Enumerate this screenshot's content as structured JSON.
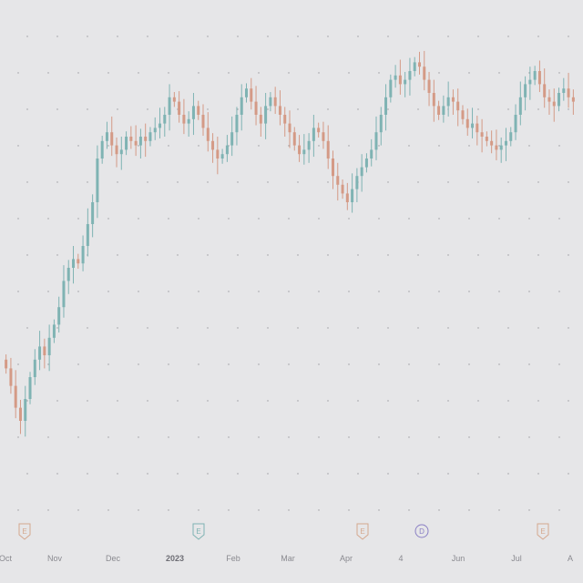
{
  "colors": {
    "background": "#e6e6e8",
    "up": "#7fb3b3",
    "down": "#d49a86",
    "earnings_marker": "#d4a88e",
    "earnings_marker_alt": "#7fb3b3",
    "dividend_marker": "#8a7fc4",
    "axis_text": "#8a8a90"
  },
  "chart_data": {
    "type": "candlestick",
    "title": "",
    "xlabel": "",
    "ylabel": "",
    "ylim": [
      0,
      100
    ],
    "y_axis_visible": false,
    "grid": "dotted",
    "x_ticks": [
      "Oct",
      "Nov",
      "Dec",
      "2023",
      "Feb",
      "Mar",
      "Apr",
      "4",
      "Jun",
      "Jul",
      "A"
    ],
    "x_tick_emphasis": [
      false,
      false,
      false,
      true,
      false,
      false,
      false,
      false,
      false,
      false,
      false
    ],
    "events": [
      {
        "label": "E",
        "type": "earnings",
        "after_tick": "Oct"
      },
      {
        "label": "E",
        "type": "earnings",
        "after_tick": "2023"
      },
      {
        "label": "E",
        "type": "earnings",
        "after_tick": "Apr"
      },
      {
        "label": "D",
        "type": "dividend",
        "after_tick": "4"
      },
      {
        "label": "E",
        "type": "earnings",
        "after_tick": "Jul"
      }
    ],
    "closes": [
      22,
      18,
      13,
      10,
      15,
      20,
      24,
      27,
      25,
      29,
      32,
      36,
      42,
      45,
      47,
      46,
      50,
      55,
      60,
      70,
      74,
      76,
      73,
      71,
      72,
      75,
      74,
      73,
      75,
      74,
      76,
      77,
      78,
      80,
      84,
      83,
      80,
      78,
      79,
      82,
      80,
      77,
      74,
      72,
      70,
      71,
      73,
      76,
      80,
      84,
      86,
      83,
      80,
      78,
      82,
      84,
      82,
      80,
      78,
      76,
      73,
      71,
      72,
      74,
      77,
      76,
      74,
      70,
      66,
      64,
      62,
      60,
      63,
      66,
      68,
      70,
      72,
      76,
      80,
      84,
      88,
      89,
      87,
      88,
      90,
      92,
      91,
      88,
      85,
      82,
      80,
      82,
      84,
      83,
      81,
      79,
      77,
      78,
      76,
      75,
      74,
      73,
      72,
      73,
      74,
      76,
      80,
      84,
      87,
      88,
      90,
      87,
      84,
      83,
      82,
      85,
      86,
      84,
      83
    ]
  }
}
